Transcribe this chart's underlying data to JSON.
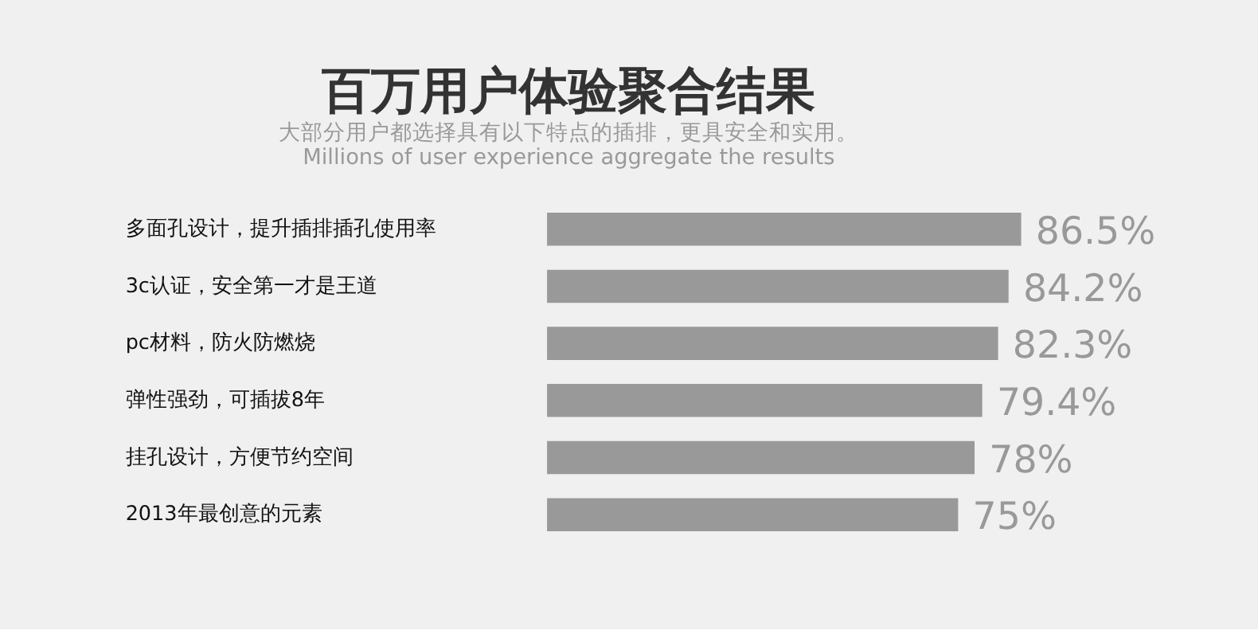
{
  "chart_data": {
    "type": "bar",
    "orientation": "horizontal",
    "title": "百万用户体验聚合结果",
    "subtitle": "大部分用户都选择具有以下特点的插排，更具安全和实用。",
    "annotations": [
      "Millions of user experience aggregate the results"
    ],
    "categories": [
      "多面孔设计，提升插排插孔使用率",
      "3c认证，安全第一才是王道",
      "pc材料，防火防燃烧",
      "弹性强劲，可插拔8年",
      "挂孔设计，方便节约空间",
      "2013年最创意的元素"
    ],
    "values": [
      86.5,
      84.2,
      82.3,
      79.4,
      78,
      75
    ],
    "value_labels": [
      "86.5%",
      "84.2%",
      "82.3%",
      "79.4%",
      "78%",
      "75%"
    ],
    "color": "#999999",
    "tick_labels": "y"
  }
}
